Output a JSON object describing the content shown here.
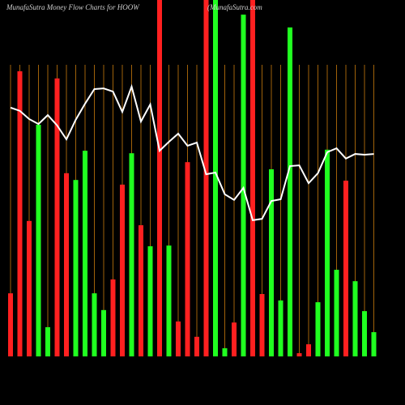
{
  "chart_data": {
    "type": "bar",
    "title": "MunafaSutra  Money Flow  Charts for HOOW",
    "subtitle": "(MunafaSutra.com",
    "ylim": [
      0,
      100
    ],
    "guide_color": "#a0620a",
    "series": [
      {
        "type": "bar",
        "values": [
          17.7,
          80,
          38,
          65,
          8.2,
          78,
          51.4,
          49.5,
          57.7,
          17.7,
          13,
          21.6,
          48.2,
          57,
          36.8,
          30.9,
          100,
          31.1,
          9.8,
          54.5,
          5.5,
          100,
          100,
          2.3,
          9.5,
          95.9,
          100,
          17.5,
          52.5,
          15.7,
          92.3,
          0.9,
          3.4,
          15.2,
          58,
          24.3,
          49.3,
          21.1,
          12.7,
          6.8
        ],
        "colors": [
          "#ff2020",
          "#ff2020",
          "#ff2020",
          "#20ff20",
          "#20ff20",
          "#ff2020",
          "#ff2020",
          "#20ff20",
          "#20ff20",
          "#20ff20",
          "#20ff20",
          "#ff2020",
          "#ff2020",
          "#20ff20",
          "#ff2020",
          "#20ff20",
          "#ff2020",
          "#20ff20",
          "#ff2020",
          "#ff2020",
          "#ff2020",
          "#ff2020",
          "#20ff20",
          "#20ff20",
          "#ff2020",
          "#20ff20",
          "#ff2020",
          "#ff2020",
          "#20ff20",
          "#20ff20",
          "#20ff20",
          "#ff2020",
          "#ff2020",
          "#20ff20",
          "#20ff20",
          "#20ff20",
          "#ff2020",
          "#20ff20",
          "#20ff20",
          "#20ff20"
        ]
      },
      {
        "type": "line",
        "color": "#ffffff",
        "values": [
          69.8,
          68.9,
          66.6,
          65.2,
          67.7,
          64.8,
          60.9,
          66.4,
          70.9,
          75,
          75.2,
          74.3,
          68.6,
          75.7,
          65.9,
          70.7,
          57.7,
          60.2,
          62.5,
          59.1,
          60,
          51.1,
          51.6,
          45.5,
          43.9,
          47.3,
          38.2,
          38.6,
          43.6,
          44.1,
          53.4,
          53.6,
          48.6,
          51.4,
          57.3,
          58.4,
          55.5,
          56.8,
          56.6,
          56.8
        ]
      }
    ]
  }
}
